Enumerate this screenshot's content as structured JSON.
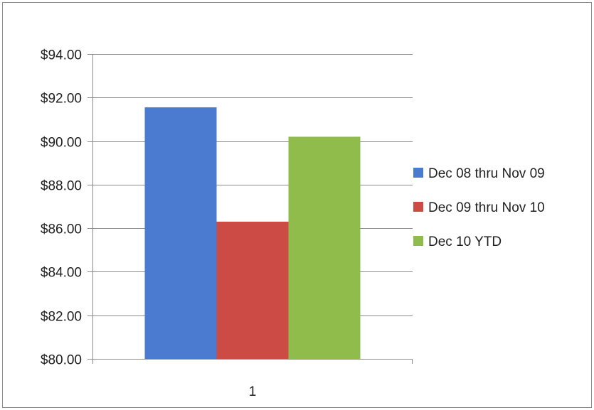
{
  "chart_data": {
    "type": "bar",
    "categories": [
      "1"
    ],
    "series": [
      {
        "name": "Dec 08 thru Nov 09",
        "values": [
          91.55
        ],
        "color": "#4a7bd0"
      },
      {
        "name": "Dec 09 thru Nov 10",
        "values": [
          86.3
        ],
        "color": "#cc4b45"
      },
      {
        "name": "Dec 10 YTD",
        "values": [
          90.2
        ],
        "color": "#8fbc4a"
      }
    ],
    "title": "",
    "xlabel": "",
    "ylabel": "",
    "ylim": [
      80,
      94
    ],
    "yticks": [
      80,
      82,
      84,
      86,
      88,
      90,
      92,
      94
    ],
    "ytick_format": "currency-2dp",
    "currency_symbol": "$",
    "grid": true,
    "legend_position": "right"
  }
}
